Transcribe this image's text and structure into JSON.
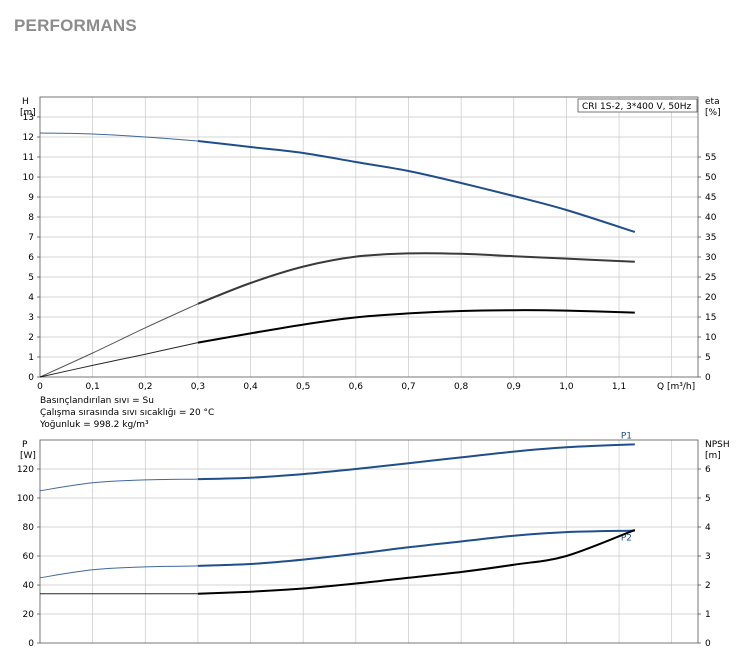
{
  "page": {
    "title": "PERFORMANS"
  },
  "conditions": [
    "Basınçlandırılan sıvı = Su",
    "Çalışma sırasında sıvı sıcaklığı = 20 °C",
    "Yoğunluk = 998.2 kg/m³"
  ],
  "colors": {
    "blue": "#1f4e8c",
    "black": "#000000",
    "grid": "#c8c8c8"
  },
  "chart_data": [
    {
      "type": "line",
      "legend_box": "CRI 1S-2, 3*400 V, 50Hz",
      "xlabel": "Q [m³/h]",
      "ylabel_left": [
        "H",
        "[m]"
      ],
      "ylabel_right": [
        "eta",
        "[%]"
      ],
      "xlim": [
        0,
        1.25
      ],
      "ylim_left": [
        0,
        14
      ],
      "ylim_right": [
        0,
        70
      ],
      "x_ticks": [
        "0",
        "0,1",
        "0,2",
        "0,3",
        "0,4",
        "0,5",
        "0,6",
        "0,7",
        "0,8",
        "0,9",
        "1,0",
        "1,1"
      ],
      "y_ticks_left": [
        "0",
        "1",
        "2",
        "3",
        "4",
        "5",
        "6",
        "7",
        "8",
        "9",
        "10",
        "11",
        "12",
        "13"
      ],
      "y_ticks_right": [
        "0",
        "5",
        "10",
        "15",
        "20",
        "25",
        "30",
        "35",
        "40",
        "45",
        "50",
        "55"
      ],
      "grid": true,
      "series": [
        {
          "axis": "left",
          "color": "#1f4e8c",
          "x": [
            0,
            0.1,
            0.2,
            0.3,
            0.4,
            0.5,
            0.6,
            0.7,
            0.8,
            0.9,
            1.0,
            1.13
          ],
          "y": [
            12.2,
            12.15,
            12.0,
            11.8,
            11.5,
            11.2,
            10.75,
            10.3,
            9.7,
            9.05,
            8.35,
            7.25
          ]
        },
        {
          "axis": "right",
          "color": "#3a3a3a",
          "x": [
            0,
            0.1,
            0.2,
            0.3,
            0.4,
            0.5,
            0.6,
            0.7,
            0.8,
            0.9,
            1.0,
            1.13
          ],
          "y": [
            0,
            6,
            12.3,
            18.3,
            23.5,
            27.6,
            30.1,
            30.9,
            30.8,
            30.2,
            29.6,
            28.8
          ]
        },
        {
          "axis": "right",
          "color": "#000000",
          "x": [
            0,
            0.1,
            0.2,
            0.3,
            0.4,
            0.5,
            0.6,
            0.7,
            0.8,
            0.9,
            1.0,
            1.13
          ],
          "y": [
            0,
            2.9,
            5.7,
            8.6,
            10.9,
            13.1,
            14.9,
            15.9,
            16.5,
            16.7,
            16.6,
            16.1
          ]
        }
      ]
    },
    {
      "type": "line",
      "xlim": [
        0,
        1.25
      ],
      "ylabel_left": [
        "P",
        "[W]"
      ],
      "ylabel_right": [
        "NPSH",
        "[m]"
      ],
      "ylim_left": [
        0,
        140
      ],
      "ylim_right": [
        0,
        7
      ],
      "y_ticks_left": [
        "0",
        "20",
        "40",
        "60",
        "80",
        "100",
        "120"
      ],
      "y_ticks_right": [
        "0",
        "1",
        "2",
        "3",
        "4",
        "5",
        "6"
      ],
      "grid": true,
      "series": [
        {
          "name": "P1",
          "axis": "left",
          "color": "#1f4e8c",
          "x": [
            0,
            0.1,
            0.2,
            0.3,
            0.4,
            0.5,
            0.6,
            0.7,
            0.8,
            0.9,
            1.0,
            1.13
          ],
          "y": [
            105,
            110.5,
            112.5,
            113,
            114,
            116.5,
            120,
            124,
            128,
            132,
            135,
            137
          ]
        },
        {
          "name": "P2",
          "axis": "left",
          "color": "#1f4e8c",
          "x": [
            0,
            0.1,
            0.2,
            0.3,
            0.4,
            0.5,
            0.6,
            0.7,
            0.8,
            0.9,
            1.0,
            1.13
          ],
          "y": [
            45,
            50.5,
            52.5,
            53.2,
            54.5,
            57.5,
            61.5,
            66,
            70,
            74,
            76.5,
            77.5
          ]
        },
        {
          "axis": "right",
          "color": "#000000",
          "x": [
            0,
            0.1,
            0.2,
            0.3,
            0.4,
            0.5,
            0.6,
            0.7,
            0.8,
            0.9,
            1.0,
            1.13
          ],
          "y": [
            1.7,
            1.7,
            1.7,
            1.7,
            1.77,
            1.88,
            2.05,
            2.25,
            2.45,
            2.7,
            3.0,
            3.9
          ]
        }
      ]
    }
  ]
}
